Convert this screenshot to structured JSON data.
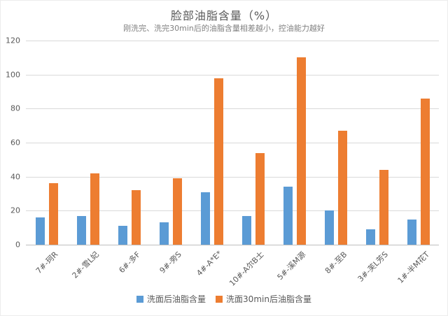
{
  "chart_data": {
    "type": "bar",
    "title": "脸部油脂含量（%）",
    "subtitle": "刚洗完、洗完30min后的油脂含量相差越小，控油能力越好",
    "categories": [
      "7#-珂R",
      "2#-雪L妃",
      "6#-多F",
      "9#-旁S",
      "4#-A*E*",
      "10#-A尔B士",
      "5#-溪M源",
      "8#-至B",
      "3#-芙L芳S",
      "1#-半M花T"
    ],
    "series": [
      {
        "name": "洗面后油脂含量",
        "color": "#5B9BD5",
        "values": [
          16,
          17,
          11,
          13,
          31,
          17,
          34,
          20,
          9,
          15
        ]
      },
      {
        "name": "洗面30min后油脂含量",
        "color": "#ED7D31",
        "values": [
          36,
          42,
          32,
          39,
          98,
          54,
          110,
          67,
          44,
          86
        ]
      }
    ],
    "xlabel": "",
    "ylabel": "",
    "ylim": [
      0,
      120
    ],
    "yticks": [
      0,
      20,
      40,
      60,
      80,
      100,
      120
    ],
    "grid": true,
    "legend_position": "bottom",
    "xlabel_rotation": -45,
    "colors": {
      "gridline": "#d9d9d9",
      "axis_line": "#bfbfbf",
      "title_text": "#595959",
      "subtitle_text": "#808080",
      "tick_text": "#595959"
    }
  }
}
